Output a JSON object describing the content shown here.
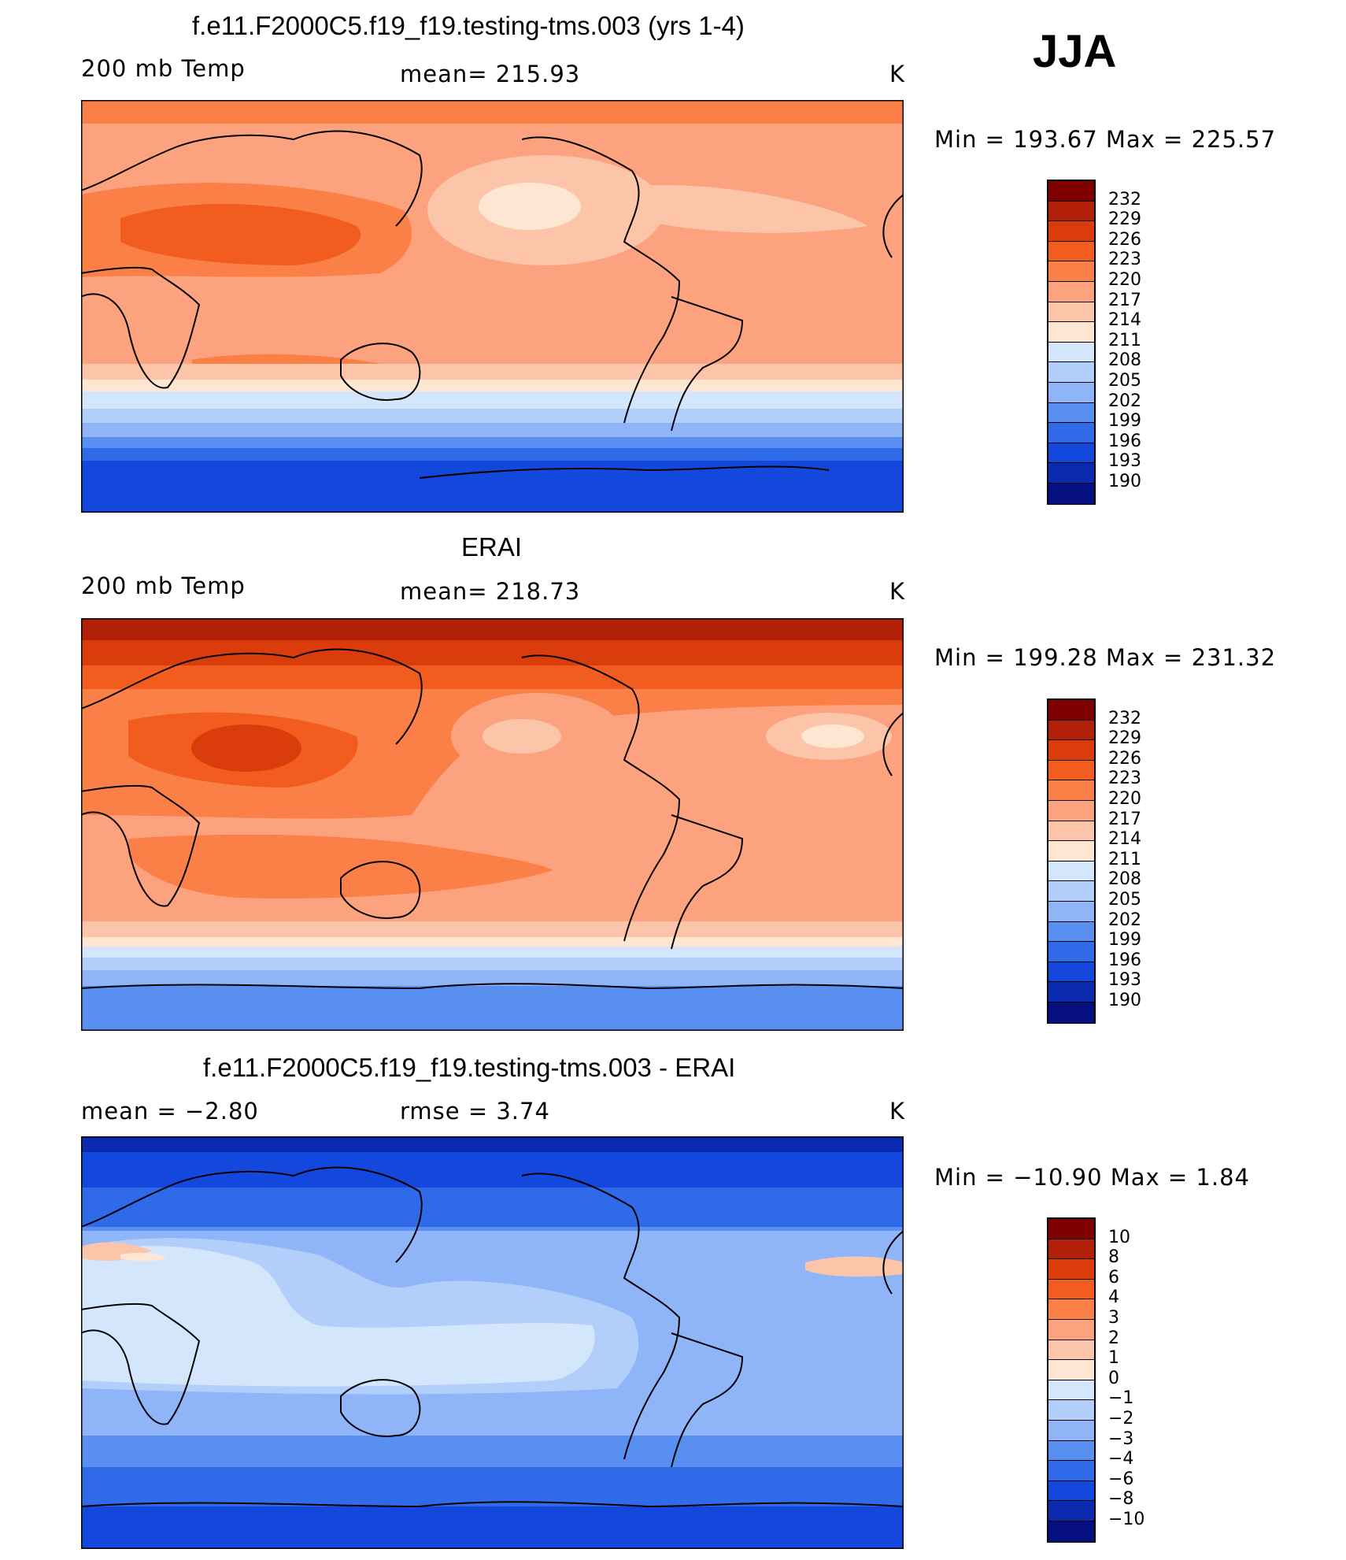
{
  "season": "JJA",
  "panels": [
    {
      "title": "f.e11.F2000C5.f19_f19.testing-tms.003 (yrs 1-4)",
      "left_label": "200 mb Temp",
      "center_label": "mean= 215.93",
      "units": "K",
      "minmax": "Min = 193.67 Max = 225.57",
      "colorbar_labels": [
        "232",
        "229",
        "226",
        "223",
        "220",
        "217",
        "214",
        "211",
        "208",
        "205",
        "202",
        "199",
        "196",
        "193",
        "190"
      ]
    },
    {
      "title": "ERAI",
      "left_label": "200 mb Temp",
      "center_label": "mean= 218.73",
      "units": "K",
      "minmax": "Min = 199.28 Max = 231.32",
      "colorbar_labels": [
        "232",
        "229",
        "226",
        "223",
        "220",
        "217",
        "214",
        "211",
        "208",
        "205",
        "202",
        "199",
        "196",
        "193",
        "190"
      ]
    },
    {
      "title": "f.e11.F2000C5.f19_f19.testing-tms.003 - ERAI",
      "left_label": "mean =  −2.80",
      "center_label": "rmse =    3.74",
      "units": "K",
      "minmax": "Min = −10.90 Max =    1.84",
      "colorbar_labels": [
        "10",
        "8",
        "6",
        "4",
        "3",
        "2",
        "1",
        "0",
        "−1",
        "−2",
        "−3",
        "−4",
        "−6",
        "−8",
        "−10"
      ]
    }
  ],
  "colors": {
    "colorbar": [
      "#800000",
      "#b3200a",
      "#db3c0b",
      "#f25c1e",
      "#fb8048",
      "#fca27f",
      "#fcc4a8",
      "#fee6d2",
      "#d4e6fb",
      "#b2cffb",
      "#8fb4f8",
      "#5a8ff2",
      "#2f6ae8",
      "#1447db",
      "#0a2bb0",
      "#060f80"
    ],
    "land_outline": "#000000"
  }
}
